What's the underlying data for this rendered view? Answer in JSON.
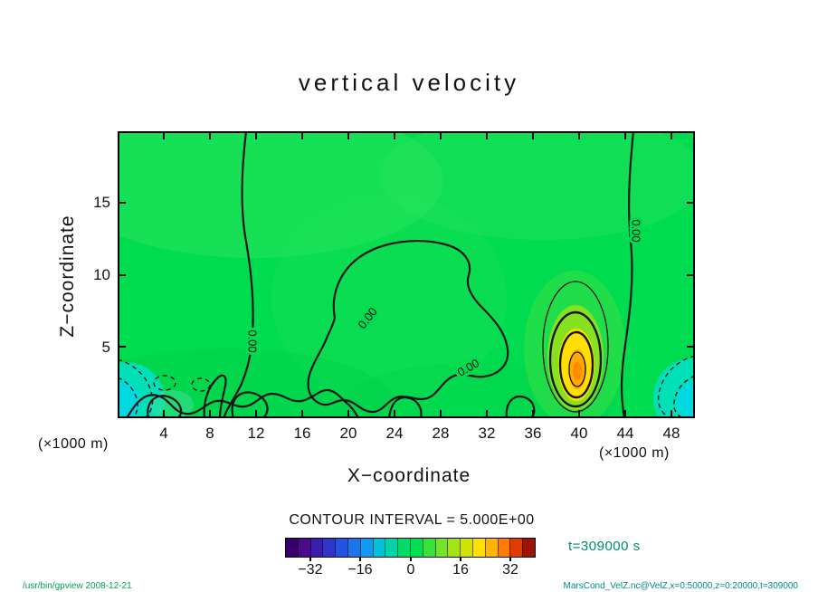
{
  "title": "vertical velocity",
  "plot": {
    "x_axis": {
      "label": "X−coordinate",
      "units": "(×1000 m)",
      "ticks": [
        "4",
        "8",
        "12",
        "16",
        "20",
        "24",
        "28",
        "32",
        "36",
        "40",
        "44",
        "48"
      ]
    },
    "y_axis": {
      "label": "Z−coordinate",
      "units": "(×1000 m)",
      "ticks": [
        "5",
        "10",
        "15"
      ]
    },
    "contour_labels": [
      "0.00",
      "0.00",
      "0.00",
      "0.00"
    ]
  },
  "colorbar": {
    "caption": "CONTOUR INTERVAL = 5.000E+00",
    "ticks": [
      "−32",
      "−16",
      "0",
      "16",
      "32"
    ],
    "colors": [
      "#38006b",
      "#4a0a8a",
      "#3a1fae",
      "#2e35c8",
      "#2452e2",
      "#1c74ee",
      "#0f9cf0",
      "#00c2dc",
      "#00d4a8",
      "#00dc6a",
      "#00e050",
      "#38e23c",
      "#74e428",
      "#a4e414",
      "#d0e400",
      "#ffe000",
      "#ffb400",
      "#ff7c00",
      "#e13c00",
      "#9c1408"
    ]
  },
  "time_label": "t=309000 s",
  "footer": {
    "left": "/usr/bin/gpview  2008-12-21",
    "right": "MarsCond_VelZ.nc@VelZ,x=0:50000,z=0:20000,t=309000"
  },
  "field_colors": {
    "background_green": "#00dc50",
    "updraft_yellow": "#ffe000",
    "updraft_orange": "#ff8c00",
    "downdraft_cyan": "#00e0c8",
    "annotation_teal": "#008a72"
  },
  "chart_data": {
    "type": "heatmap",
    "subtype": "filled-contour-plot",
    "title": "vertical velocity",
    "variable": "VelZ",
    "xlabel": "X−coordinate",
    "ylabel": "Z−coordinate",
    "x_units": "×1000 m",
    "y_units": "×1000 m",
    "xlim": [
      0,
      50
    ],
    "ylim": [
      0,
      20
    ],
    "x_ticks": [
      4,
      8,
      12,
      16,
      20,
      24,
      28,
      32,
      36,
      40,
      44,
      48
    ],
    "y_ticks": [
      5,
      10,
      15
    ],
    "contour_interval": 5.0,
    "zero_contour_label": "0.00",
    "colorbar": {
      "ticks": [
        -32,
        -16,
        0,
        16,
        32
      ],
      "range": [
        -40,
        40
      ],
      "orientation": "horizontal"
    },
    "time_seconds": 309000,
    "grid": false,
    "features": [
      {
        "name": "updraft-maximum",
        "x": 40,
        "z": 4,
        "approx_value": 20,
        "appearance": "yellow core with orange center and concentric black contours"
      },
      {
        "name": "background-field",
        "approx_value": 0,
        "appearance": "near-zero bright green field crossed by meandering 0.00 contours"
      },
      {
        "name": "downdraft-left-corner",
        "x": 1,
        "z": 1.5,
        "approx_value": -8,
        "appearance": "cyan patch with dashed negative contours"
      },
      {
        "name": "downdraft-right-corner",
        "x": 49,
        "z": 1.5,
        "approx_value": -8,
        "appearance": "cyan patch with dashed negative contours"
      }
    ],
    "zero_contours": [
      "quasi-vertical 0.00 line near x=11 running from top boundary to bottom boundary",
      "quasi-vertical 0.00 line near x=44 running from top boundary to bottom boundary",
      "large closed 0.00 loop spanning roughly x=17-34, z=0-11",
      "bumpy 0.00 structures along the lower boundary z<4",
      "closed contour rings around the updraft maximum at x=40, z=2-10"
    ]
  }
}
